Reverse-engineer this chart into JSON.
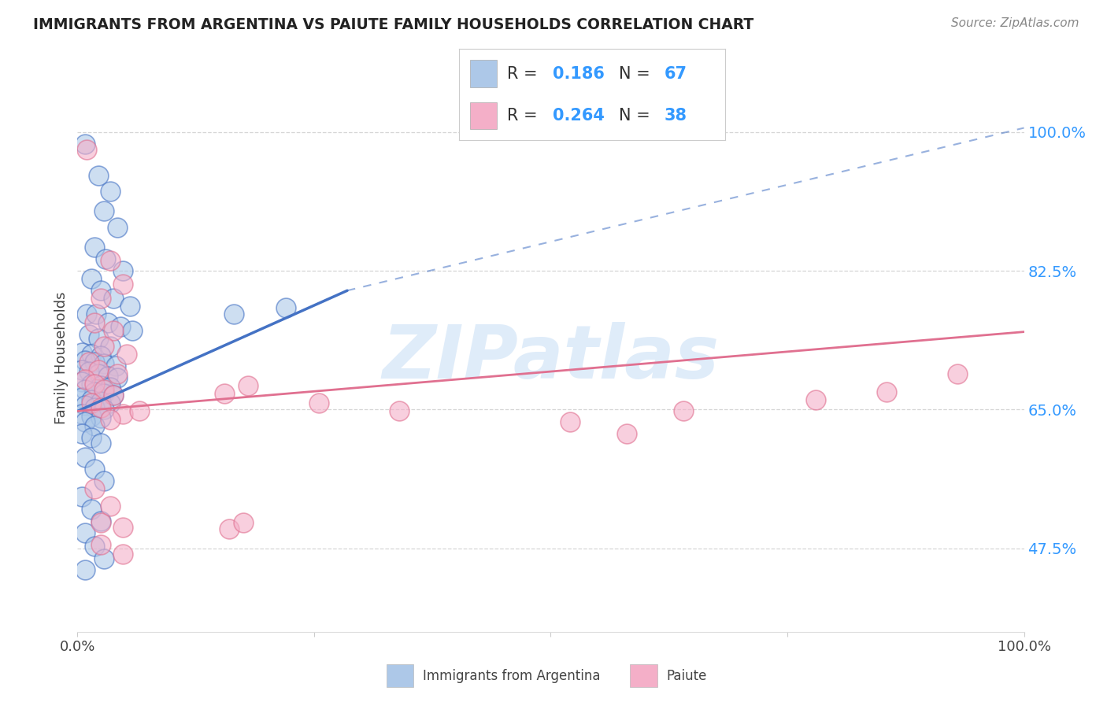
{
  "title": "IMMIGRANTS FROM ARGENTINA VS PAIUTE FAMILY HOUSEHOLDS CORRELATION CHART",
  "source": "Source: ZipAtlas.com",
  "ylabel": "Family Households",
  "y_ticks_labels": [
    "47.5%",
    "65.0%",
    "82.5%",
    "100.0%"
  ],
  "y_tick_vals": [
    0.475,
    0.65,
    0.825,
    1.0
  ],
  "x_range": [
    0.0,
    1.0
  ],
  "y_range": [
    0.37,
    1.06
  ],
  "legend_entries": [
    {
      "label": "Immigrants from Argentina",
      "R": "0.186",
      "N": "67",
      "color": "#adc8e8",
      "line_color": "#4472c4"
    },
    {
      "label": "Paiute",
      "R": "0.264",
      "N": "38",
      "color": "#f4afc8",
      "line_color": "#e07090"
    }
  ],
  "argentina_scatter": [
    [
      0.008,
      0.985
    ],
    [
      0.022,
      0.945
    ],
    [
      0.035,
      0.925
    ],
    [
      0.028,
      0.9
    ],
    [
      0.042,
      0.88
    ],
    [
      0.018,
      0.855
    ],
    [
      0.03,
      0.84
    ],
    [
      0.048,
      0.825
    ],
    [
      0.015,
      0.815
    ],
    [
      0.025,
      0.8
    ],
    [
      0.038,
      0.79
    ],
    [
      0.055,
      0.78
    ],
    [
      0.01,
      0.77
    ],
    [
      0.02,
      0.77
    ],
    [
      0.032,
      0.76
    ],
    [
      0.045,
      0.755
    ],
    [
      0.058,
      0.75
    ],
    [
      0.012,
      0.745
    ],
    [
      0.022,
      0.74
    ],
    [
      0.035,
      0.73
    ],
    [
      0.005,
      0.722
    ],
    [
      0.015,
      0.72
    ],
    [
      0.025,
      0.718
    ],
    [
      0.008,
      0.712
    ],
    [
      0.018,
      0.71
    ],
    [
      0.028,
      0.708
    ],
    [
      0.04,
      0.705
    ],
    [
      0.005,
      0.7
    ],
    [
      0.012,
      0.698
    ],
    [
      0.022,
      0.695
    ],
    [
      0.032,
      0.692
    ],
    [
      0.042,
      0.69
    ],
    [
      0.005,
      0.685
    ],
    [
      0.015,
      0.682
    ],
    [
      0.025,
      0.68
    ],
    [
      0.035,
      0.678
    ],
    [
      0.008,
      0.675
    ],
    [
      0.018,
      0.672
    ],
    [
      0.028,
      0.67
    ],
    [
      0.038,
      0.668
    ],
    [
      0.005,
      0.665
    ],
    [
      0.015,
      0.662
    ],
    [
      0.025,
      0.66
    ],
    [
      0.035,
      0.658
    ],
    [
      0.008,
      0.655
    ],
    [
      0.018,
      0.652
    ],
    [
      0.028,
      0.65
    ],
    [
      0.005,
      0.645
    ],
    [
      0.015,
      0.642
    ],
    [
      0.025,
      0.64
    ],
    [
      0.008,
      0.635
    ],
    [
      0.018,
      0.63
    ],
    [
      0.005,
      0.62
    ],
    [
      0.015,
      0.615
    ],
    [
      0.025,
      0.608
    ],
    [
      0.008,
      0.59
    ],
    [
      0.018,
      0.575
    ],
    [
      0.028,
      0.56
    ],
    [
      0.005,
      0.54
    ],
    [
      0.015,
      0.525
    ],
    [
      0.025,
      0.51
    ],
    [
      0.008,
      0.495
    ],
    [
      0.018,
      0.478
    ],
    [
      0.028,
      0.462
    ],
    [
      0.008,
      0.448
    ],
    [
      0.165,
      0.77
    ],
    [
      0.22,
      0.778
    ]
  ],
  "paiute_scatter": [
    [
      0.01,
      0.978
    ],
    [
      0.035,
      0.838
    ],
    [
      0.048,
      0.808
    ],
    [
      0.025,
      0.79
    ],
    [
      0.018,
      0.76
    ],
    [
      0.038,
      0.75
    ],
    [
      0.028,
      0.73
    ],
    [
      0.052,
      0.72
    ],
    [
      0.012,
      0.71
    ],
    [
      0.022,
      0.7
    ],
    [
      0.042,
      0.695
    ],
    [
      0.008,
      0.688
    ],
    [
      0.018,
      0.682
    ],
    [
      0.028,
      0.675
    ],
    [
      0.038,
      0.668
    ],
    [
      0.015,
      0.658
    ],
    [
      0.025,
      0.652
    ],
    [
      0.048,
      0.645
    ],
    [
      0.18,
      0.68
    ],
    [
      0.255,
      0.658
    ],
    [
      0.035,
      0.638
    ],
    [
      0.065,
      0.648
    ],
    [
      0.155,
      0.67
    ],
    [
      0.34,
      0.648
    ],
    [
      0.52,
      0.635
    ],
    [
      0.64,
      0.648
    ],
    [
      0.78,
      0.662
    ],
    [
      0.855,
      0.672
    ],
    [
      0.93,
      0.695
    ],
    [
      0.018,
      0.55
    ],
    [
      0.035,
      0.528
    ],
    [
      0.025,
      0.508
    ],
    [
      0.048,
      0.502
    ],
    [
      0.16,
      0.5
    ],
    [
      0.175,
      0.508
    ],
    [
      0.025,
      0.48
    ],
    [
      0.048,
      0.468
    ],
    [
      0.58,
      0.62
    ]
  ],
  "argentina_line_x": [
    0.0,
    0.285
  ],
  "argentina_line_y": [
    0.648,
    0.8
  ],
  "paiute_line_x": [
    0.0,
    1.0
  ],
  "paiute_line_y": [
    0.648,
    0.748
  ],
  "dashed_line_x": [
    0.285,
    1.0
  ],
  "dashed_line_y": [
    0.8,
    1.005
  ],
  "watermark": "ZIPatlas",
  "watermark_color": "#c5ddf5",
  "background_color": "#ffffff",
  "grid_color": "#cccccc",
  "title_color": "#222222",
  "source_color": "#888888",
  "tick_label_color": "#3399ff",
  "axis_label_color": "#444444"
}
